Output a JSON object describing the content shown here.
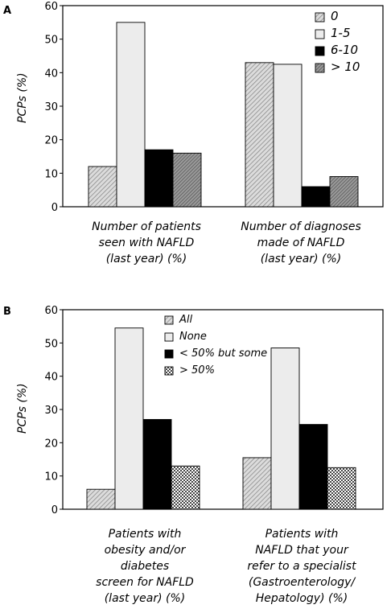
{
  "chart_data": [
    {
      "panel": "A",
      "type": "bar",
      "ylabel": "PCPs (%)",
      "ylim": [
        0,
        60
      ],
      "yticks": [
        "0",
        "10",
        "20",
        "30",
        "40",
        "50",
        "60"
      ],
      "categories": [
        [
          "Number of patients",
          "seen with NAFLD",
          "(last year) (%)"
        ],
        [
          "Number of diagnoses",
          "made of NAFLD",
          "(last year) (%)"
        ]
      ],
      "series": [
        {
          "name": "0",
          "values": [
            12,
            43
          ],
          "pattern": "diag-gray"
        },
        {
          "name": "1-5",
          "values": [
            55,
            42.5
          ],
          "pattern": "light-gray"
        },
        {
          "name": "6-10",
          "values": [
            17,
            6
          ],
          "pattern": "black"
        },
        {
          "name": "> 10",
          "values": [
            16,
            9
          ],
          "pattern": "dark-hatch"
        }
      ],
      "legend_position": "top-right",
      "grid": false
    },
    {
      "panel": "B",
      "type": "bar",
      "ylabel": "PCPs (%)",
      "ylim": [
        0,
        60
      ],
      "yticks": [
        "0",
        "10",
        "20",
        "30",
        "40",
        "50",
        "60"
      ],
      "categories": [
        [
          "Patients with",
          "obesity and/or",
          "diabetes",
          "screen for NAFLD",
          "(last year) (%)"
        ],
        [
          "Patients with",
          "NAFLD that your",
          "refer to a specialist",
          "(Gastroenterology/",
          "Hepatology) (%)"
        ]
      ],
      "series": [
        {
          "name": "All",
          "values": [
            6,
            15.5
          ],
          "pattern": "diag-gray"
        },
        {
          "name": "None",
          "values": [
            54.5,
            48.5
          ],
          "pattern": "light-gray"
        },
        {
          "name": "< 50% but some",
          "values": [
            27,
            25.5
          ],
          "pattern": "black"
        },
        {
          "name": "> 50%",
          "values": [
            13,
            12.5
          ],
          "pattern": "checker"
        }
      ],
      "legend_position": "top-left",
      "grid": false
    }
  ],
  "panel_letters": {
    "a": "A",
    "b": "B"
  }
}
